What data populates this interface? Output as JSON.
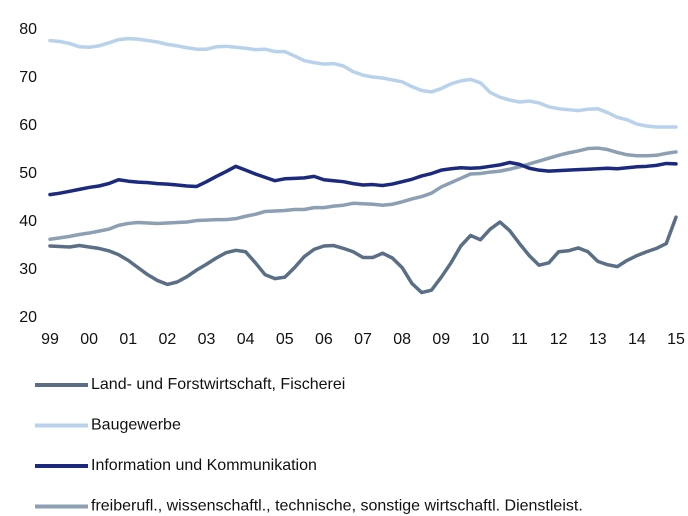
{
  "chart_data": {
    "type": "line",
    "categories": [
      "99",
      null,
      null,
      null,
      "00",
      null,
      null,
      null,
      "01",
      null,
      null,
      null,
      "02",
      null,
      null,
      null,
      "03",
      null,
      null,
      null,
      "04",
      null,
      null,
      null,
      "05",
      null,
      null,
      null,
      "06",
      null,
      null,
      null,
      "07",
      null,
      null,
      null,
      "08",
      null,
      null,
      null,
      "09",
      null,
      null,
      null,
      "10",
      null,
      null,
      null,
      "11",
      null,
      null,
      null,
      "12",
      null,
      null,
      null,
      "13",
      null,
      null,
      null,
      "14",
      null,
      null,
      null,
      "15"
    ],
    "series": [
      {
        "name": "Land- und Forstwirtschaft, Fischerei",
        "color": "#5a6f85",
        "values": [
          35,
          34.9,
          34.8,
          35.1,
          34.8,
          34.5,
          34,
          33.2,
          32,
          30.5,
          29,
          27.8,
          27,
          27.5,
          28.6,
          30,
          31.2,
          32.5,
          33.6,
          34.1,
          33.8,
          31.5,
          29,
          28.2,
          28.5,
          30.5,
          32.8,
          34.3,
          35,
          35.1,
          34.5,
          33.8,
          32.6,
          32.6,
          33.5,
          32.5,
          30.5,
          27.2,
          25.3,
          25.8,
          28.5,
          31.5,
          35,
          37.2,
          36.3,
          38.5,
          40,
          38.2,
          35.5,
          33,
          31,
          31.5,
          33.8,
          34,
          34.6,
          33.8,
          31.8,
          31.1,
          30.7,
          32,
          33,
          33.8,
          34.5,
          35.5,
          41
        ]
      },
      {
        "name": "Baugewerbe",
        "color": "#b8d2ec",
        "values": [
          77.8,
          77.6,
          77.2,
          76.5,
          76.4,
          76.7,
          77.3,
          78,
          78.2,
          78.1,
          77.8,
          77.5,
          77,
          76.7,
          76.3,
          76,
          76,
          76.5,
          76.6,
          76.4,
          76.2,
          75.9,
          76,
          75.5,
          75.5,
          74.6,
          73.6,
          73.2,
          72.9,
          73,
          72.5,
          71.3,
          70.6,
          70.2,
          70,
          69.6,
          69.2,
          68.2,
          67.4,
          67.1,
          67.8,
          68.8,
          69.4,
          69.7,
          69,
          67,
          66,
          65.4,
          65,
          65.2,
          64.8,
          64,
          63.6,
          63.4,
          63.2,
          63.5,
          63.6,
          62.8,
          61.8,
          61.3,
          60.4,
          60,
          59.8,
          59.8,
          59.8
        ]
      },
      {
        "name": "Information und Kommunikation",
        "color": "#1b2a7e",
        "values": [
          45.7,
          46,
          46.4,
          46.8,
          47.2,
          47.5,
          48,
          48.8,
          48.5,
          48.3,
          48.2,
          48,
          47.9,
          47.7,
          47.5,
          47.4,
          48.4,
          49.5,
          50.5,
          51.6,
          50.8,
          50,
          49.3,
          48.6,
          49,
          49.1,
          49.2,
          49.5,
          48.8,
          48.6,
          48.4,
          48,
          47.7,
          47.8,
          47.6,
          47.9,
          48.4,
          48.9,
          49.6,
          50.1,
          50.8,
          51.1,
          51.3,
          51.2,
          51.3,
          51.6,
          51.9,
          52.4,
          52,
          51.2,
          50.8,
          50.6,
          50.7,
          50.8,
          50.9,
          51,
          51.1,
          51.2,
          51.1,
          51.3,
          51.5,
          51.6,
          51.8,
          52.2,
          52.1
        ]
      },
      {
        "name": "freiberufl., wissenschaftl., technische, sonstige wirtschaftl. Dienstleist.",
        "color": "#8c9fb3",
        "values": [
          36.4,
          36.7,
          37,
          37.4,
          37.7,
          38.1,
          38.5,
          39.3,
          39.7,
          39.9,
          39.8,
          39.7,
          39.8,
          39.9,
          40,
          40.3,
          40.4,
          40.5,
          40.5,
          40.7,
          41.2,
          41.6,
          42.2,
          42.3,
          42.4,
          42.6,
          42.6,
          43,
          43,
          43.3,
          43.5,
          43.9,
          43.8,
          43.7,
          43.5,
          43.7,
          44.2,
          44.8,
          45.3,
          46,
          47.3,
          48.2,
          49.1,
          50,
          50.1,
          50.4,
          50.6,
          51,
          51.5,
          52.1,
          52.7,
          53.3,
          53.9,
          54.4,
          54.8,
          55.3,
          55.4,
          55.1,
          54.5,
          54,
          53.8,
          53.8,
          53.9,
          54.3,
          54.6
        ]
      }
    ],
    "ylim": [
      20,
      80
    ],
    "yticks": [
      20,
      30,
      40,
      50,
      60,
      70,
      80
    ],
    "grid": false
  }
}
